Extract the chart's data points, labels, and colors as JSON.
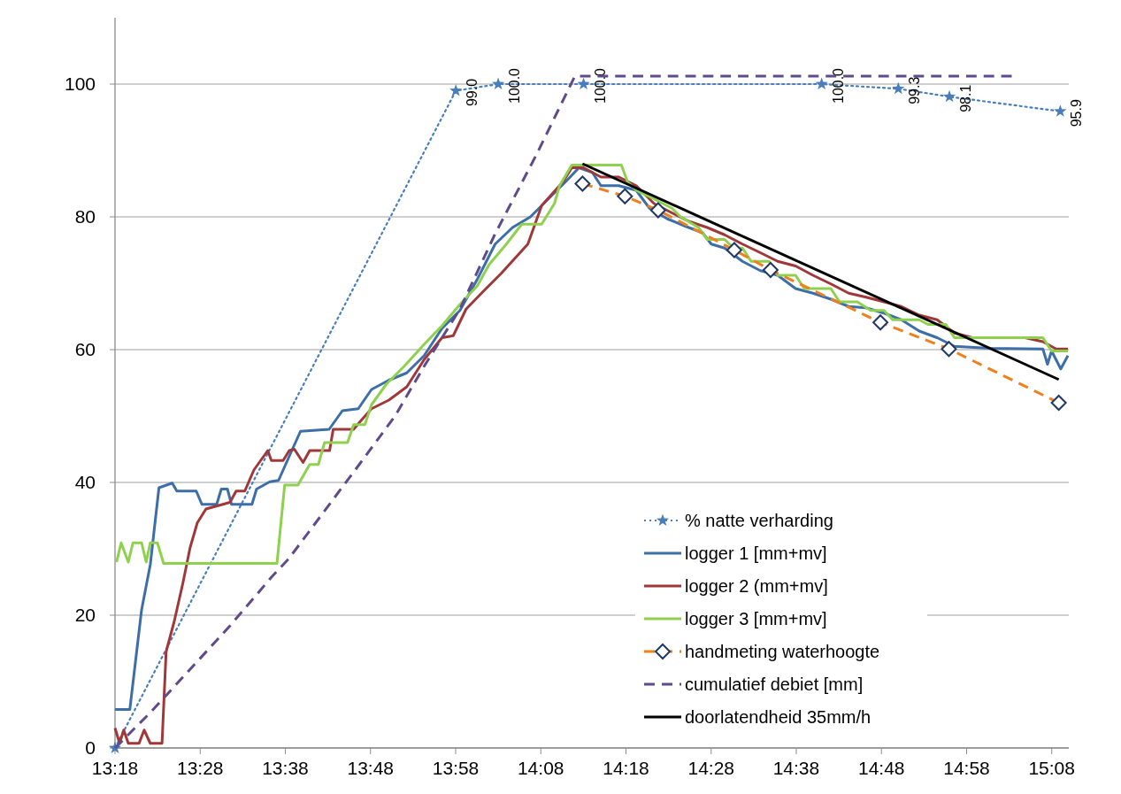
{
  "chart_data": {
    "type": "line",
    "xlim": [
      13.3,
      15.1667
    ],
    "ylim": [
      0,
      110
    ],
    "xticks": [
      {
        "value": 13.3,
        "label": "13:18"
      },
      {
        "value": 13.4667,
        "label": "13:28"
      },
      {
        "value": 13.6333,
        "label": "13:38"
      },
      {
        "value": 13.8,
        "label": "13:48"
      },
      {
        "value": 13.9667,
        "label": "13:58"
      },
      {
        "value": 14.1333,
        "label": "14:08"
      },
      {
        "value": 14.3,
        "label": "14:18"
      },
      {
        "value": 14.4667,
        "label": "14:28"
      },
      {
        "value": 14.6333,
        "label": "14:38"
      },
      {
        "value": 14.8,
        "label": "14:48"
      },
      {
        "value": 14.9667,
        "label": "14:58"
      },
      {
        "value": 15.1333,
        "label": "15:08"
      }
    ],
    "yticks": [
      0,
      20,
      40,
      60,
      80,
      100
    ],
    "grid": "y",
    "legend": "bottom right",
    "series": [
      {
        "name": "% natte verharding",
        "color": "#4a7ebb",
        "marker": "star",
        "line_style": "dotted",
        "x": [
          13.3,
          13.967,
          14.05,
          14.217,
          14.683,
          14.833,
          14.933,
          15.15
        ],
        "values": [
          0,
          99,
          100,
          100,
          100,
          99.3,
          98.1,
          95.9
        ],
        "value_labels": [
          null,
          "99.0",
          "100.0",
          "100.0",
          "100.0",
          "99.3",
          "98.1",
          "95.9"
        ]
      },
      {
        "name": "logger 1 [mm+mv]",
        "color": "#3c6ea8",
        "marker": "none",
        "line_style": "solid",
        "x": [
          13.3,
          13.329,
          13.352,
          13.369,
          13.386,
          13.412,
          13.421,
          13.459,
          13.47,
          13.499,
          13.508,
          13.52,
          13.528,
          13.568,
          13.577,
          13.603,
          13.62,
          13.646,
          13.663,
          13.719,
          13.745,
          13.776,
          13.802,
          13.836,
          13.871,
          13.905,
          13.94,
          13.975,
          14.009,
          14.044,
          14.078,
          14.113,
          14.148,
          14.182,
          14.208,
          14.234,
          14.251,
          14.286,
          14.32,
          14.346,
          14.381,
          14.416,
          14.45,
          14.467,
          14.493,
          14.528,
          14.563,
          14.597,
          14.632,
          14.666,
          14.701,
          14.736,
          14.77,
          14.805,
          14.839,
          14.874,
          14.909,
          14.943,
          15.012,
          15.116,
          15.125,
          15.133,
          15.151,
          15.165
        ],
        "values": [
          5.8,
          5.8,
          20.8,
          27.6,
          39.2,
          39.9,
          38.7,
          38.7,
          36.7,
          36.7,
          39.0,
          39.0,
          36.7,
          36.7,
          39.0,
          40.1,
          40.3,
          44.8,
          47.7,
          48.0,
          50.8,
          51.1,
          54.0,
          55.4,
          56.5,
          59.1,
          63.2,
          65.9,
          70.6,
          75.9,
          78.4,
          80.0,
          82.7,
          85.3,
          87.4,
          86.7,
          84.7,
          84.7,
          84.0,
          81.3,
          79.7,
          78.6,
          77.6,
          75.9,
          75.3,
          73.3,
          71.9,
          71.2,
          69.2,
          68.5,
          67.6,
          66.5,
          66.3,
          65.5,
          64.5,
          62.8,
          61.8,
          60.5,
          60.2,
          60.1,
          57.8,
          59.8,
          57.1,
          59.1
        ]
      },
      {
        "name": "logger 2 (mm+mv]",
        "color": "#a0383a",
        "marker": "none",
        "line_style": "solid",
        "x": [
          13.3,
          13.309,
          13.317,
          13.326,
          13.347,
          13.357,
          13.369,
          13.392,
          13.4,
          13.416,
          13.433,
          13.447,
          13.461,
          13.478,
          13.525,
          13.537,
          13.554,
          13.572,
          13.599,
          13.606,
          13.629,
          13.641,
          13.651,
          13.668,
          13.681,
          13.72,
          13.727,
          13.767,
          13.779,
          13.802,
          13.836,
          13.871,
          13.905,
          13.94,
          13.962,
          13.987,
          14.021,
          14.056,
          14.108,
          14.135,
          14.177,
          14.194,
          14.217,
          14.251,
          14.286,
          14.32,
          14.355,
          14.39,
          14.424,
          14.459,
          14.493,
          14.528,
          14.563,
          14.597,
          14.632,
          14.666,
          14.701,
          14.736,
          14.77,
          14.805,
          14.839,
          14.874,
          14.909,
          14.943,
          14.978,
          15.081,
          15.116,
          15.142,
          15.165
        ],
        "values": [
          3.0,
          0.7,
          2.7,
          0.7,
          0.7,
          2.7,
          0.7,
          0.7,
          14.5,
          19.1,
          24.9,
          30.2,
          33.9,
          36.0,
          37.0,
          38.7,
          38.7,
          41.9,
          44.8,
          43.3,
          43.3,
          44.8,
          45.0,
          43.0,
          44.8,
          44.8,
          48.0,
          48.0,
          49.1,
          51.1,
          52.4,
          54.4,
          58.5,
          61.8,
          62.1,
          66.1,
          68.8,
          71.5,
          75.9,
          81.7,
          85.3,
          87.4,
          87.4,
          86.0,
          86.0,
          84.7,
          82.0,
          80.6,
          79.3,
          78.4,
          77.3,
          75.9,
          74.6,
          73.3,
          72.6,
          71.2,
          69.9,
          68.5,
          67.9,
          67.2,
          66.5,
          65.2,
          64.5,
          62.5,
          61.8,
          61.8,
          61.2,
          60.1,
          60.1
        ]
      },
      {
        "name": "logger 3 [mm+mv]",
        "color": "#8fd14f",
        "marker": "none",
        "line_style": "solid",
        "x": [
          13.303,
          13.312,
          13.326,
          13.335,
          13.352,
          13.361,
          13.369,
          13.383,
          13.395,
          13.617,
          13.632,
          13.658,
          13.681,
          13.698,
          13.71,
          13.755,
          13.767,
          13.789,
          13.802,
          13.831,
          13.866,
          13.905,
          13.94,
          13.975,
          14.009,
          14.032,
          14.066,
          14.096,
          14.135,
          14.16,
          14.17,
          14.194,
          14.291,
          14.303,
          14.32,
          14.355,
          14.39,
          14.407,
          14.442,
          14.459,
          14.493,
          14.511,
          14.528,
          14.545,
          14.58,
          14.597,
          14.632,
          14.649,
          14.701,
          14.718,
          14.753,
          14.779,
          14.805,
          14.822,
          14.874,
          14.891,
          14.926,
          14.943,
          15.116,
          15.133,
          15.165
        ],
        "values": [
          28.0,
          30.9,
          28.0,
          30.9,
          30.9,
          28.0,
          30.9,
          30.9,
          27.8,
          27.8,
          39.6,
          39.6,
          42.7,
          42.7,
          46.0,
          46.0,
          48.7,
          48.7,
          51.7,
          54.8,
          57.5,
          60.8,
          63.6,
          66.8,
          69.6,
          72.8,
          75.9,
          78.9,
          78.9,
          82.0,
          84.7,
          87.8,
          87.8,
          85.3,
          84.0,
          82.7,
          81.3,
          80.0,
          78.4,
          76.6,
          76.6,
          75.3,
          75.3,
          73.3,
          73.3,
          71.2,
          71.2,
          69.2,
          69.2,
          67.2,
          67.2,
          65.9,
          65.9,
          64.5,
          64.5,
          63.8,
          63.8,
          61.8,
          61.8,
          59.8,
          59.8
        ]
      },
      {
        "name": "handmeting waterhoogte",
        "color": "#f07f1d",
        "marker": "diamond",
        "line_style": "dashed",
        "x": [
          14.215,
          14.298,
          14.363,
          14.512,
          14.583,
          14.798,
          14.932,
          15.147
        ],
        "values": [
          85.0,
          83.1,
          81.0,
          75.0,
          72.0,
          64.1,
          60.1,
          52.0
        ]
      },
      {
        "name": "cumulatief debiet [mm]",
        "color": "#5f4b8b",
        "marker": "none",
        "line_style": "dashed",
        "x": [
          13.3,
          13.37,
          13.525,
          13.607,
          13.64,
          13.778,
          13.848,
          13.905,
          13.975,
          14.043,
          14.125,
          14.2,
          15.055
        ],
        "values": [
          0,
          5.4,
          18.4,
          25.8,
          28.5,
          42.7,
          50.0,
          57.5,
          66.1,
          77.3,
          89.4,
          101.2,
          101.2
        ]
      },
      {
        "name": "doorlatendheid 35mm/h",
        "color": "#000000",
        "marker": "none",
        "line_style": "solid",
        "x": [
          14.215,
          15.147
        ],
        "values": [
          88.0,
          55.5
        ]
      }
    ]
  }
}
